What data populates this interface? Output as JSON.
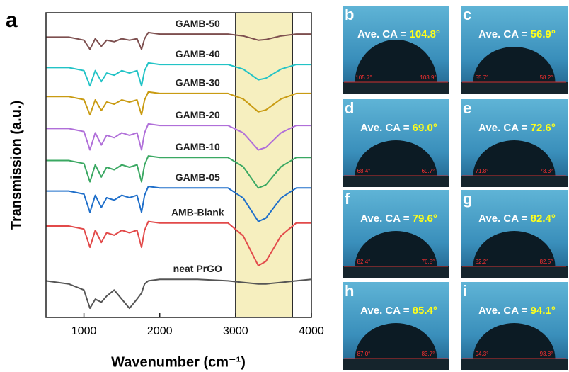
{
  "chart_data": {
    "type": "line",
    "panel_label": "a",
    "xlabel": "Wavenumber (cm⁻¹)",
    "ylabel": "Transmission (a.u.)",
    "x": [
      500,
      800,
      1000,
      1080,
      1150,
      1230,
      1300,
      1400,
      1500,
      1600,
      1700,
      1760,
      1800,
      1850,
      2000,
      2500,
      2900,
      3100,
      3300,
      3400,
      3600,
      3800,
      4000
    ],
    "xlim": [
      500,
      4000
    ],
    "xticks": [
      1000,
      2000,
      3000,
      4000
    ],
    "ylim": [
      0,
      100
    ],
    "shaded_region": {
      "x": [
        3000,
        3750
      ],
      "color": "#f6efbf"
    },
    "series": [
      {
        "name": "GAMB-50",
        "color": "#7d4f4f",
        "values": [
          92,
          92,
          91,
          88,
          91.5,
          89,
          91,
          90.5,
          91.5,
          91,
          91.5,
          88,
          91.5,
          93.5,
          93,
          93,
          93,
          92.4,
          91,
          91.2,
          92.4,
          93,
          93
        ]
      },
      {
        "name": "GAMB-40",
        "color": "#22c3c6",
        "values": [
          82,
          82,
          81,
          76,
          81,
          77.4,
          80.2,
          79.5,
          81,
          80.2,
          81,
          76,
          81,
          83.5,
          83,
          83,
          83,
          81.5,
          78,
          78.5,
          81.5,
          83,
          83
        ]
      },
      {
        "name": "GAMB-30",
        "color": "#c99b12",
        "values": [
          72.5,
          72.5,
          71.5,
          66.5,
          71.4,
          67.9,
          70.7,
          70,
          71.4,
          70.7,
          71.4,
          66.5,
          71.4,
          74,
          73.5,
          73.5,
          73.5,
          71.7,
          67.5,
          68.1,
          71.7,
          73.5,
          73.5
        ]
      },
      {
        "name": "GAMB-20",
        "color": "#b06fd9",
        "values": [
          62,
          62,
          61,
          55,
          60.6,
          56.6,
          59.8,
          59,
          60.6,
          59.8,
          60.6,
          55,
          60.6,
          63.5,
          63,
          63,
          63,
          60.6,
          55,
          55.8,
          60.6,
          63,
          63
        ]
      },
      {
        "name": "GAMB-10",
        "color": "#3aa862",
        "values": [
          51.5,
          51.5,
          50.5,
          44.5,
          50.1,
          46.1,
          49.3,
          48.5,
          50.1,
          49.3,
          50.1,
          44.5,
          50.1,
          53,
          52.5,
          52.5,
          52.5,
          49.5,
          42.5,
          43.5,
          49.5,
          52.5,
          52.5
        ]
      },
      {
        "name": "GAMB-05",
        "color": "#1f6fca",
        "values": [
          41.5,
          41.5,
          40.5,
          34.5,
          40.1,
          36.1,
          39.3,
          38.5,
          40.1,
          39.3,
          40.1,
          34.5,
          40.1,
          43,
          42.5,
          42.5,
          42.5,
          39.2,
          31.5,
          32.6,
          39.2,
          42.5,
          42.5
        ]
      },
      {
        "name": "AMB-Blank",
        "color": "#e24a4a",
        "values": [
          30,
          30,
          29,
          23,
          28.6,
          24.6,
          27.8,
          27,
          28.6,
          27.8,
          28.6,
          23,
          28.6,
          31.5,
          31,
          31,
          31,
          26.8,
          17,
          18.4,
          26.8,
          31,
          31
        ]
      },
      {
        "name": "neat PrGO",
        "color": "#555555",
        "values": [
          12,
          11,
          9,
          3,
          6,
          5,
          7,
          9,
          6,
          3,
          6,
          8,
          11,
          12,
          12.5,
          12.5,
          12,
          11.5,
          11,
          11,
          11.5,
          12,
          12.5
        ]
      }
    ]
  },
  "photos": [
    {
      "label": "b",
      "ave_ca_label": "Ave. CA =",
      "ave_ca": "104.8°",
      "left": "105.7°",
      "right": "103.9°"
    },
    {
      "label": "c",
      "ave_ca_label": "Ave. CA =",
      "ave_ca": "56.9°",
      "left": "55.7°",
      "right": "58.2°"
    },
    {
      "label": "d",
      "ave_ca_label": "Ave. CA =",
      "ave_ca": "69.0°",
      "left": "68.4°",
      "right": "69.7°"
    },
    {
      "label": "e",
      "ave_ca_label": "Ave. CA =",
      "ave_ca": "72.6°",
      "left": "71.8°",
      "right": "73.3°"
    },
    {
      "label": "f",
      "ave_ca_label": "Ave. CA =",
      "ave_ca": "79.6°",
      "left": "82.4°",
      "right": "76.8°"
    },
    {
      "label": "g",
      "ave_ca_label": "Ave. CA =",
      "ave_ca": "82.4°",
      "left": "82.2°",
      "right": "82.5°"
    },
    {
      "label": "h",
      "ave_ca_label": "Ave. CA =",
      "ave_ca": "85.4°",
      "left": "87.0°",
      "right": "83.7°"
    },
    {
      "label": "i",
      "ave_ca_label": "Ave. CA =",
      "ave_ca": "94.1°",
      "left": "94.3°",
      "right": "93.8°"
    }
  ]
}
